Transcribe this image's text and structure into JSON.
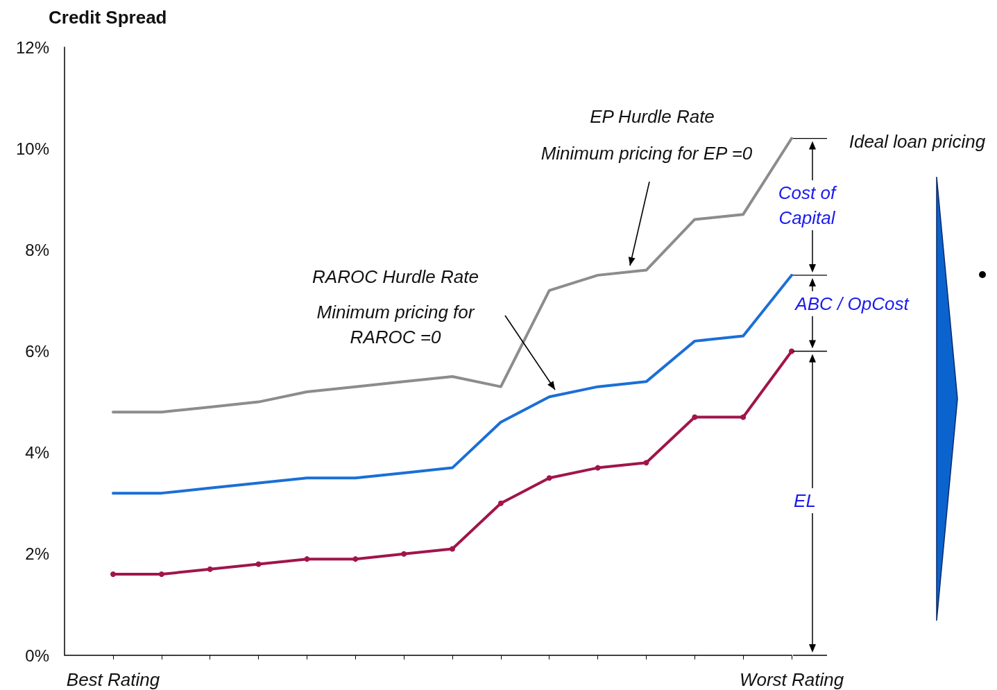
{
  "chart_data": {
    "type": "line",
    "ylabel": "Credit Spread",
    "categories": [
      "Best Rating",
      null,
      null,
      null,
      null,
      null,
      null,
      null,
      null,
      null,
      null,
      null,
      null,
      null,
      "Worst Rating"
    ],
    "series": [
      {
        "color": "#8c8c8c",
        "marker": "none",
        "values": [
          4.8,
          4.8,
          4.9,
          5.0,
          5.2,
          5.3,
          5.4,
          5.5,
          5.3,
          7.2,
          7.5,
          7.6,
          8.6,
          8.7,
          10.2
        ]
      },
      {
        "color": "#1a6fd6",
        "marker": "none",
        "values": [
          3.2,
          3.2,
          3.3,
          3.4,
          3.5,
          3.5,
          3.6,
          3.7,
          4.6,
          5.1,
          5.3,
          5.4,
          6.2,
          6.3,
          7.5
        ]
      },
      {
        "color": "#a0154a",
        "marker": "circle",
        "values": [
          1.6,
          1.6,
          1.7,
          1.8,
          1.9,
          1.9,
          2.0,
          2.1,
          3.0,
          3.5,
          3.7,
          3.8,
          4.7,
          4.7,
          6.0
        ]
      }
    ],
    "ylim": [
      0,
      12
    ],
    "yticks": [
      {
        "value": 0,
        "label": "0%"
      },
      {
        "value": 2,
        "label": "2%"
      },
      {
        "value": 4,
        "label": "4%"
      },
      {
        "value": 6,
        "label": "6%"
      },
      {
        "value": 8,
        "label": "8%"
      },
      {
        "value": 10,
        "label": "10%"
      },
      {
        "value": 12,
        "label": "12%"
      }
    ],
    "annotations": [
      "EP Hurdle Rate",
      "Minimum pricing for EP =0",
      "RAROC Hurdle Rate",
      "Minimum pricing for RAROC =0",
      "Ideal loan pricing",
      "Cost of Capital",
      "ABC / OpCost",
      "EL"
    ]
  }
}
